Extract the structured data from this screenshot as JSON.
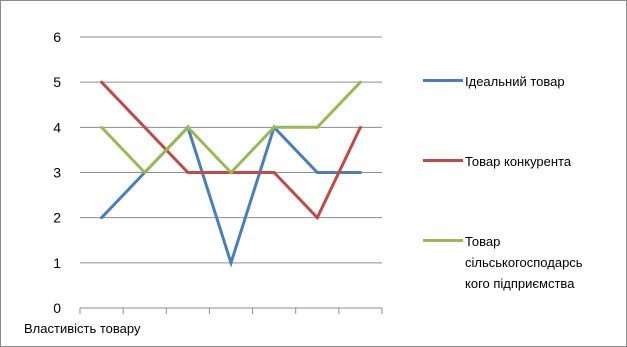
{
  "chart_data": {
    "type": "line",
    "title": "",
    "xlabel": "Властивість товару",
    "ylabel": "",
    "ylim": [
      0,
      6
    ],
    "yticks": [
      0,
      1,
      2,
      3,
      4,
      5,
      6
    ],
    "grid": true,
    "legend": "right",
    "x": [
      1,
      2,
      3,
      4,
      5,
      6,
      7
    ],
    "series": [
      {
        "name": "Ідеальний товар",
        "color": "#4a7ebb",
        "values": [
          2,
          3,
          4,
          1,
          4,
          3,
          3
        ]
      },
      {
        "name": "Товар конкурента",
        "color": "#be4b48",
        "values": [
          5,
          4,
          3,
          3,
          3,
          2,
          4
        ]
      },
      {
        "name": "Товар сільськогосподарського підприємства",
        "color": "#98b954",
        "values": [
          4,
          3,
          4,
          3,
          4,
          4,
          5
        ]
      }
    ]
  },
  "legend_lines": [
    [
      "Ідеальний товар"
    ],
    [
      "Товар конкурента"
    ],
    [
      "Товар",
      "сільськогосподарсь",
      "кого підприємства"
    ]
  ]
}
